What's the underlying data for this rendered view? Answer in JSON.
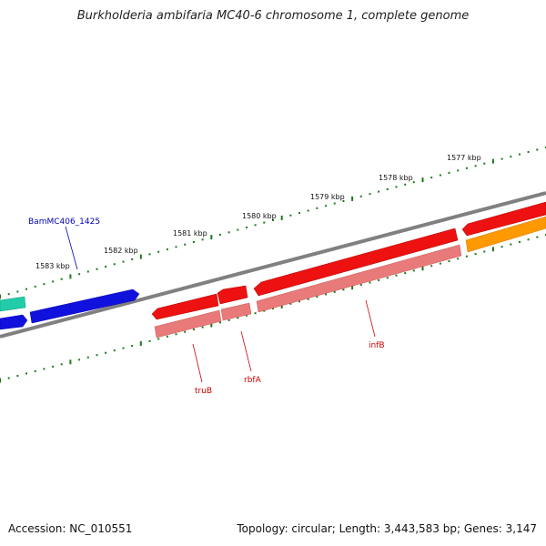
{
  "title": "Burkholderia ambifaria MC40-6 chromosome 1, complete genome",
  "footer": {
    "accession": "Accession: NC_010551",
    "topology": "Topology: circular; Length: 3,443,583 bp; Genes: 3,147"
  },
  "ticks": [
    "1583 kbp",
    "1582 kbp",
    "1581 kbp",
    "1580 kbp",
    "1579 kbp",
    "1578 kbp",
    "1577 kbp"
  ],
  "genes": [
    {
      "name": "BamMC406_1425",
      "color": "#0000bb"
    },
    {
      "name": "truB",
      "color": "#cc0000"
    },
    {
      "name": "rbfA",
      "color": "#cc0000"
    },
    {
      "name": "infB",
      "color": "#cc0000"
    }
  ],
  "colors": {
    "backbone": "#808080",
    "tick": "#1a7a1a",
    "red_gene": "#ee1111",
    "pink_cds": "#e87a7a",
    "blue_gene": "#1111dd",
    "teal_gene": "#22ccaa",
    "orange_gene": "#ff9900"
  }
}
